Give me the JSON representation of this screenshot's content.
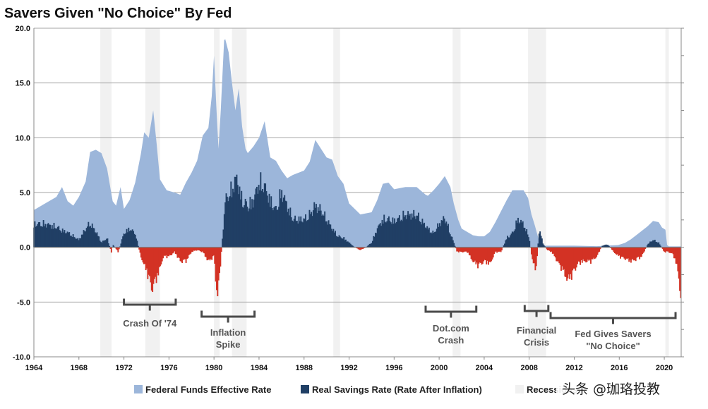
{
  "chart_data": {
    "type": "area",
    "title": "Savers Given \"No Choice\" By Fed",
    "xlabel": "",
    "ylabel": "",
    "xlim": [
      1964,
      2021.5
    ],
    "ylim": [
      -10,
      20
    ],
    "x_ticks": [
      1964,
      1968,
      1972,
      1976,
      1980,
      1984,
      1988,
      1992,
      1996,
      2000,
      2004,
      2008,
      2012,
      2016,
      2020
    ],
    "x_tick_labels": [
      "1964",
      "1968",
      "1972",
      "1976",
      "1980",
      "1984",
      "1988",
      "1992",
      "1996",
      "2000",
      "2004",
      "2008",
      "2012",
      "2016",
      "2020"
    ],
    "y_ticks": [
      -10,
      -5,
      0,
      5,
      10,
      15,
      20
    ],
    "y_tick_labels": [
      "-10.0",
      "-5.0",
      "0.0",
      "5.0",
      "10.0",
      "15.0",
      "20.0"
    ],
    "grid": true,
    "legend": "bottom",
    "colors": {
      "fed": "#9cb6da",
      "real_positive": "#203f65",
      "real_negative": "#d33224",
      "recession": "#f1f1f1",
      "grid": "#a5a5a5",
      "zero_line": "#777777"
    },
    "recessions": [
      {
        "start": 1969.9,
        "end": 1970.9
      },
      {
        "start": 1973.9,
        "end": 1975.2
      },
      {
        "start": 1980.0,
        "end": 1980.5
      },
      {
        "start": 1981.6,
        "end": 1982.9
      },
      {
        "start": 1990.6,
        "end": 1991.2
      },
      {
        "start": 2001.2,
        "end": 2001.9
      },
      {
        "start": 2007.9,
        "end": 2009.5
      },
      {
        "start": 2020.1,
        "end": 2020.4
      }
    ],
    "series": [
      {
        "name": "Federal Funds Effective Rate",
        "type": "area",
        "x": [
          1964.0,
          1965.0,
          1966.0,
          1966.5,
          1967.0,
          1967.5,
          1968.0,
          1968.6,
          1969.0,
          1969.5,
          1970.0,
          1970.5,
          1971.0,
          1971.3,
          1971.7,
          1972.0,
          1972.5,
          1973.0,
          1973.5,
          1973.8,
          1974.2,
          1974.6,
          1974.9,
          1975.2,
          1975.8,
          1976.5,
          1977.0,
          1977.5,
          1978.0,
          1978.5,
          1979.0,
          1979.5,
          1979.8,
          1980.0,
          1980.2,
          1980.4,
          1980.6,
          1980.9,
          1981.0,
          1981.3,
          1981.6,
          1981.9,
          1982.2,
          1982.5,
          1982.8,
          1983.0,
          1983.5,
          1984.0,
          1984.5,
          1985.0,
          1985.5,
          1986.0,
          1986.5,
          1987.0,
          1987.5,
          1988.0,
          1988.5,
          1989.0,
          1989.5,
          1990.0,
          1990.5,
          1991.0,
          1991.5,
          1992.0,
          1993.0,
          1994.0,
          1994.5,
          1995.0,
          1995.5,
          1996.0,
          1997.0,
          1998.0,
          1998.8,
          1999.0,
          1999.5,
          2000.0,
          2000.5,
          2001.0,
          2001.3,
          2001.7,
          2002.0,
          2003.0,
          2003.5,
          2004.0,
          2004.5,
          2005.0,
          2005.5,
          2006.0,
          2006.5,
          2007.0,
          2007.5,
          2007.9,
          2008.2,
          2008.5,
          2008.9,
          2009.0,
          2010.0,
          2012.0,
          2014.0,
          2015.9,
          2016.5,
          2017.0,
          2017.5,
          2018.0,
          2018.5,
          2019.0,
          2019.5,
          2019.8,
          2020.1,
          2020.25,
          2020.4,
          2021.0,
          2021.5
        ],
        "values": [
          3.4,
          4.0,
          4.6,
          5.5,
          4.2,
          3.8,
          4.6,
          6.0,
          8.7,
          8.9,
          8.6,
          7.2,
          4.2,
          3.8,
          5.5,
          3.5,
          4.3,
          5.9,
          8.5,
          10.5,
          10.0,
          12.5,
          9.5,
          6.2,
          5.2,
          5.0,
          4.8,
          5.9,
          6.8,
          7.9,
          10.2,
          10.9,
          13.8,
          17.5,
          13.0,
          9.0,
          12.5,
          18.9,
          19.0,
          17.8,
          15.0,
          12.5,
          14.5,
          11.0,
          9.0,
          8.6,
          9.2,
          10.0,
          11.5,
          8.2,
          7.9,
          7.0,
          6.3,
          6.6,
          6.8,
          7.0,
          7.8,
          9.8,
          9.0,
          8.2,
          8.0,
          6.5,
          5.8,
          4.0,
          3.0,
          3.2,
          4.3,
          5.8,
          5.9,
          5.3,
          5.5,
          5.5,
          4.8,
          4.7,
          5.2,
          5.8,
          6.5,
          5.5,
          4.0,
          2.5,
          1.7,
          1.1,
          1.0,
          1.0,
          1.4,
          2.3,
          3.3,
          4.3,
          5.2,
          5.2,
          5.2,
          4.5,
          3.0,
          2.0,
          0.5,
          0.15,
          0.15,
          0.15,
          0.1,
          0.2,
          0.4,
          0.7,
          1.1,
          1.5,
          1.9,
          2.4,
          2.3,
          1.8,
          1.6,
          0.2,
          0.08,
          0.08,
          0.08
        ]
      },
      {
        "name": "Real Savings Rate (Rate After Inflation)",
        "type": "bar",
        "x": [
          1964.0,
          1965.0,
          1966.0,
          1966.5,
          1967.0,
          1968.0,
          1968.6,
          1969.0,
          1969.6,
          1970.0,
          1970.5,
          1970.9,
          1971.0,
          1971.5,
          1972.0,
          1972.5,
          1973.0,
          1973.5,
          1974.0,
          1974.5,
          1975.0,
          1975.5,
          1976.0,
          1976.5,
          1977.0,
          1977.5,
          1978.0,
          1978.5,
          1979.0,
          1979.5,
          1980.0,
          1980.3,
          1980.6,
          1981.0,
          1981.5,
          1982.0,
          1982.5,
          1983.0,
          1983.5,
          1984.0,
          1984.5,
          1985.0,
          1985.5,
          1986.0,
          1986.5,
          1987.0,
          1987.5,
          1988.0,
          1988.5,
          1989.0,
          1989.5,
          1990.0,
          1990.5,
          1991.0,
          1991.5,
          1992.0,
          1992.5,
          1993.0,
          1993.5,
          1994.0,
          1994.5,
          1995.0,
          1995.5,
          1996.0,
          1997.0,
          1998.0,
          1999.0,
          1999.5,
          2000.0,
          2000.5,
          2001.0,
          2001.3,
          2001.6,
          2002.0,
          2002.5,
          2003.0,
          2003.5,
          2004.0,
          2004.5,
          2005.0,
          2005.5,
          2006.0,
          2006.5,
          2007.0,
          2007.5,
          2008.0,
          2008.3,
          2008.6,
          2008.9,
          2009.2,
          2009.6,
          2010.0,
          2010.5,
          2011.0,
          2011.4,
          2011.8,
          2012.3,
          2012.8,
          2013.5,
          2014.0,
          2014.5,
          2015.0,
          2015.5,
          2016.0,
          2016.5,
          2017.0,
          2017.5,
          2018.0,
          2018.5,
          2019.0,
          2019.5,
          2020.0,
          2020.4,
          2020.8,
          2021.0,
          2021.2,
          2021.4,
          2021.5
        ],
        "values": [
          2.5,
          2.5,
          2.2,
          1.8,
          1.6,
          0.8,
          2.0,
          2.6,
          1.5,
          0.5,
          1.0,
          -0.6,
          0.3,
          -0.5,
          1.5,
          2.0,
          1.5,
          -1.0,
          -2.5,
          -4.5,
          -3.0,
          -1.0,
          -1.0,
          -0.5,
          -1.5,
          -1.5,
          -0.5,
          -0.3,
          -0.5,
          -1.5,
          -1.0,
          -5.5,
          -1.5,
          5.0,
          6.0,
          7.5,
          5.0,
          4.5,
          5.0,
          7.0,
          6.5,
          5.0,
          4.0,
          6.0,
          4.5,
          3.0,
          3.0,
          3.0,
          3.5,
          4.5,
          4.0,
          3.0,
          2.0,
          1.2,
          1.0,
          0.5,
          0.0,
          -0.3,
          0.0,
          0.5,
          2.0,
          3.0,
          3.0,
          2.8,
          3.5,
          3.5,
          2.0,
          1.5,
          2.5,
          3.2,
          1.5,
          0.5,
          -0.5,
          -0.5,
          -0.5,
          -1.5,
          -2.0,
          -1.5,
          -1.8,
          -0.5,
          -0.5,
          1.0,
          1.5,
          3.0,
          2.5,
          1.0,
          -1.5,
          -2.5,
          2.0,
          0.5,
          -0.3,
          -0.5,
          -1.5,
          -2.5,
          -3.5,
          -3.0,
          -1.8,
          -1.5,
          -1.5,
          -1.0,
          0.2,
          0.3,
          -0.5,
          -1.0,
          -1.2,
          -1.5,
          -1.3,
          -1.0,
          0.3,
          0.8,
          0.5,
          -0.5,
          -0.5,
          -0.8,
          -1.5,
          -2.5,
          -4.5,
          -6.0
        ]
      },
      {
        "name": "Recessions",
        "type": "span"
      }
    ],
    "annotations": [
      {
        "text": [
          "Crash Of '74"
        ],
        "bracket": [
          1972.0,
          1976.6
        ]
      },
      {
        "text": [
          "Inflation",
          "Spike"
        ],
        "bracket": [
          1978.9,
          1983.6
        ]
      },
      {
        "text": [
          "Dot.com",
          "Crash"
        ],
        "bracket": [
          1998.8,
          2003.3
        ]
      },
      {
        "text": [
          "Financial",
          "Crisis"
        ],
        "bracket": [
          2007.6,
          2009.7
        ]
      },
      {
        "text": [
          "Fed Gives Savers",
          "\"No Choice\""
        ],
        "bracket": [
          2009.9,
          2021.0
        ]
      }
    ],
    "watermark": "头条 @珈珞投教"
  }
}
